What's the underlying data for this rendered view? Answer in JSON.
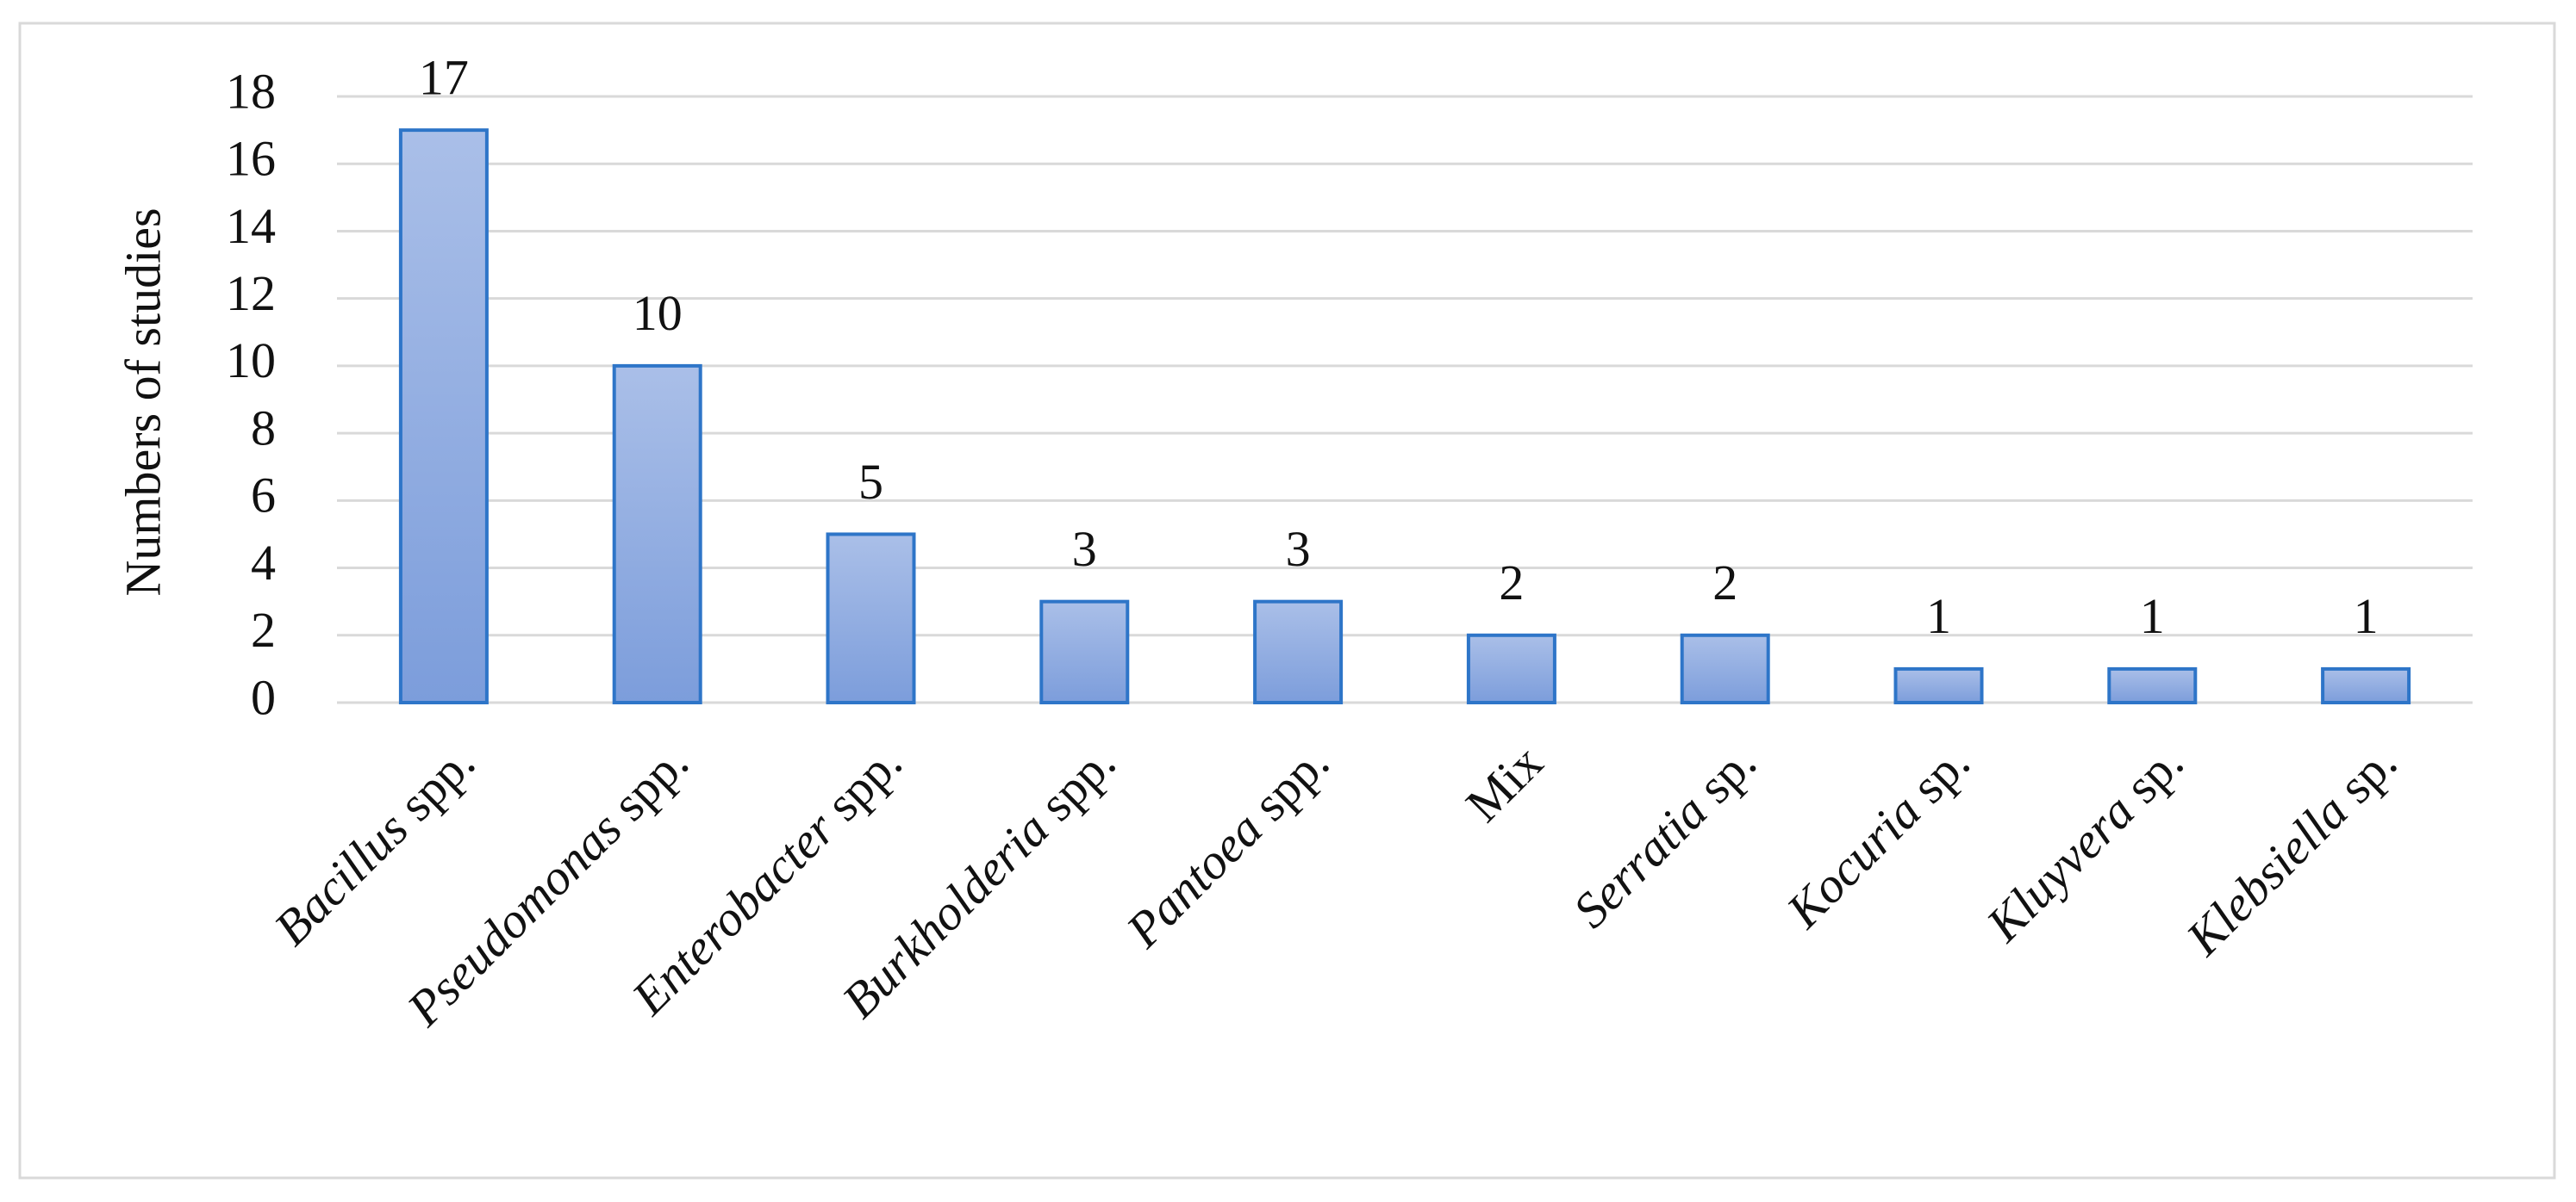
{
  "chart_data": {
    "type": "bar",
    "y_label": "Numbers of studies",
    "categories": [
      "Bacillus spp.",
      "Pseudomonas spp.",
      "Enterobacter spp.",
      "Burkholderia spp.",
      "Pantoea spp.",
      "Mix",
      "Serratia sp.",
      "Kocuria sp.",
      "Kluyvera sp.",
      "Klebsiella sp."
    ],
    "values": [
      17,
      10,
      5,
      3,
      3,
      2,
      2,
      1,
      1,
      1
    ],
    "color": "#8eaade",
    "edge_color": "#2e75c8",
    "ylim": [
      0,
      18
    ],
    "yticks": [
      0,
      2,
      4,
      6,
      8,
      10,
      12,
      14,
      16,
      18
    ],
    "grid": true
  }
}
